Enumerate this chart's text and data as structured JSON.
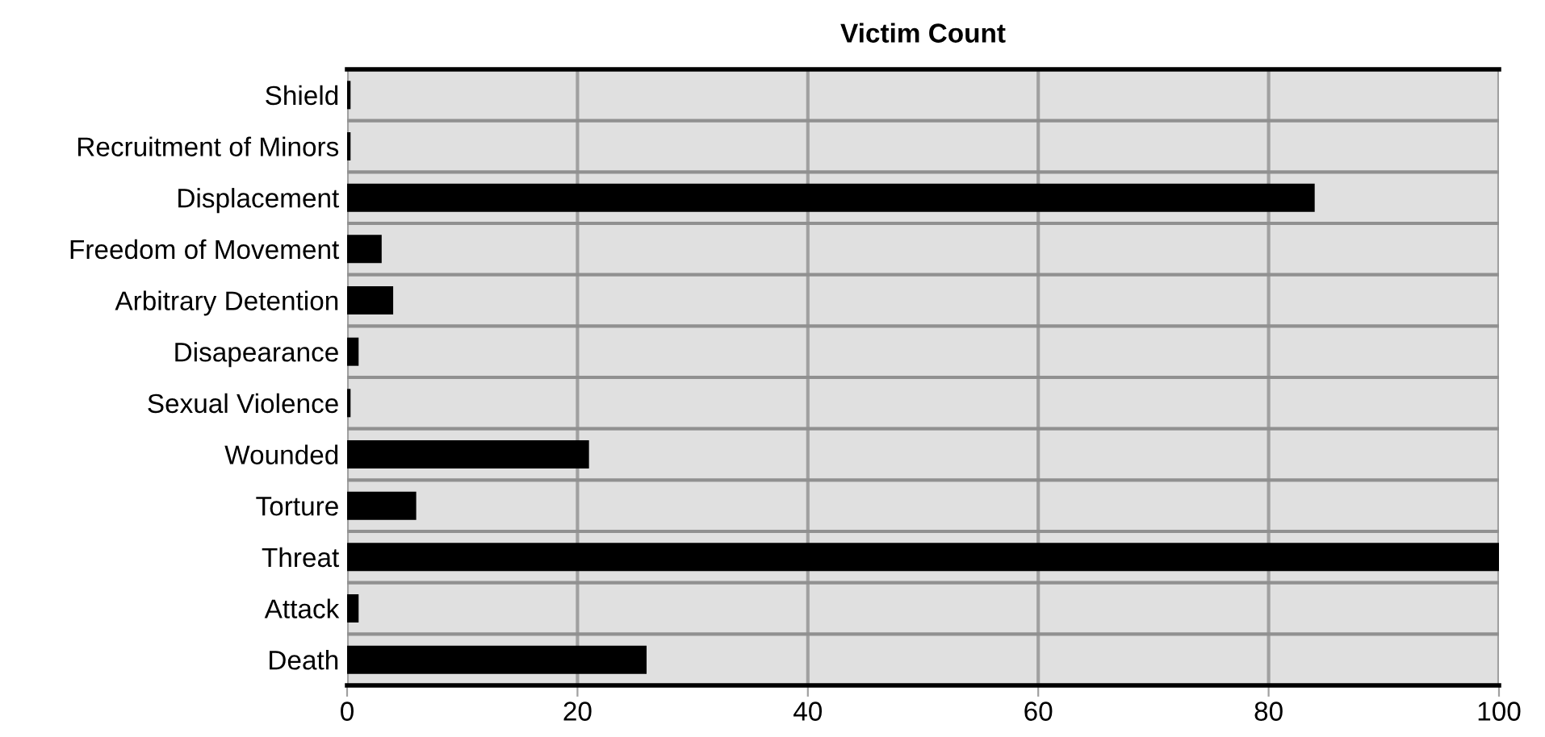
{
  "chart_data": {
    "type": "bar",
    "orientation": "horizontal",
    "title": "Victim Count",
    "categories": [
      "Shield",
      "Recruitment of Minors",
      "Displacement",
      "Freedom of Movement",
      "Arbitrary Detention",
      "Disapearance",
      "Sexual Violence",
      "Wounded",
      "Torture",
      "Threat",
      "Attack",
      "Death"
    ],
    "values": [
      0.3,
      0.3,
      84,
      3,
      4,
      1,
      0.3,
      21,
      6,
      100,
      1,
      26
    ],
    "color": "#000000",
    "xlim": [
      0,
      100
    ],
    "xticks": [
      0,
      20,
      40,
      60,
      80,
      100
    ],
    "grid": true
  }
}
